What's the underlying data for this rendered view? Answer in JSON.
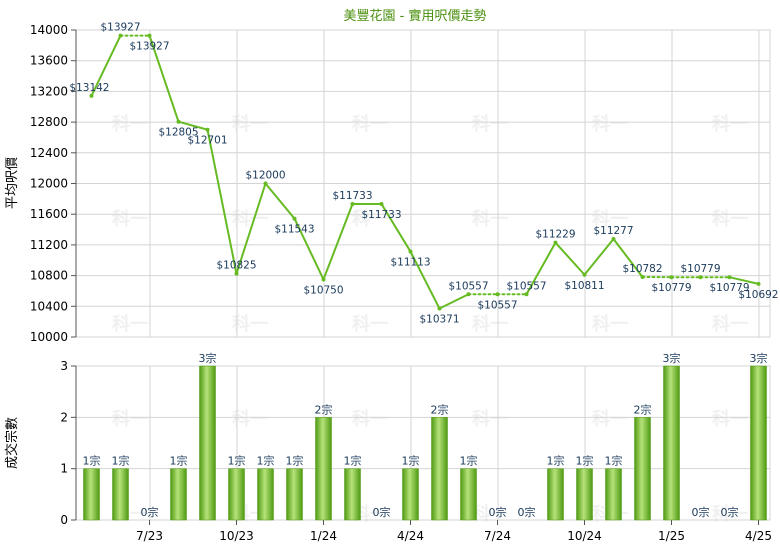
{
  "chart_data": {
    "type": "line+bar",
    "title": "美豐花園 - 實用呎價走勢",
    "watermark": "科一",
    "colors": {
      "line": "#66bb22",
      "bar_light": "#b6e27a",
      "bar_dark": "#4f9a12",
      "grid": "#d4d4d4",
      "title": "#4a8f0e",
      "label": "#1a3a5c"
    },
    "x_tick_labels": [
      "7/23",
      "10/23",
      "1/24",
      "4/24",
      "7/24",
      "10/24",
      "1/25",
      "4/25"
    ],
    "x_tick_indices": [
      2,
      5,
      8,
      11,
      14,
      17,
      20,
      23
    ],
    "price_chart": {
      "ylabel": "平均呎價",
      "ylim": [
        10000,
        14000
      ],
      "yticks": [
        10000,
        10400,
        10800,
        11200,
        11600,
        12000,
        12400,
        12800,
        13200,
        13600,
        14000
      ],
      "values": [
        13142,
        13927,
        13927,
        12805,
        12701,
        10825,
        12000,
        11543,
        10750,
        11733,
        11733,
        11113,
        10371,
        10557,
        10557,
        10557,
        11229,
        10811,
        11277,
        10782,
        10779,
        10779,
        10779,
        10692
      ],
      "labels": [
        "$13142",
        "$13927",
        "$13927",
        "$12805",
        "$12701",
        "$10825",
        "$12000",
        "$11543",
        "$10750",
        "$11733",
        "$11733",
        "$11113",
        "$10371",
        "$10557",
        "$10557",
        "$10557",
        "$11229",
        "$10811",
        "$11277",
        "$10782",
        "$10779",
        "$10779",
        "$10779",
        "$10692"
      ],
      "dotted_segments": [
        [
          1,
          2
        ],
        [
          13,
          15
        ],
        [
          19,
          22
        ]
      ]
    },
    "volume_chart": {
      "ylabel": "成交宗數",
      "ylim": [
        0,
        3
      ],
      "yticks": [
        0,
        1,
        2,
        3
      ],
      "values": [
        1,
        1,
        0,
        1,
        3,
        1,
        1,
        1,
        2,
        1,
        0,
        1,
        2,
        1,
        0,
        0,
        1,
        1,
        1,
        2,
        3,
        0,
        0,
        3
      ],
      "labels": [
        "1宗",
        "1宗",
        "0宗",
        "1宗",
        "3宗",
        "1宗",
        "1宗",
        "1宗",
        "2宗",
        "1宗",
        "0宗",
        "1宗",
        "2宗",
        "1宗",
        "0宗",
        "0宗",
        "1宗",
        "1宗",
        "1宗",
        "2宗",
        "3宗",
        "0宗",
        "0宗",
        "3宗"
      ]
    }
  }
}
